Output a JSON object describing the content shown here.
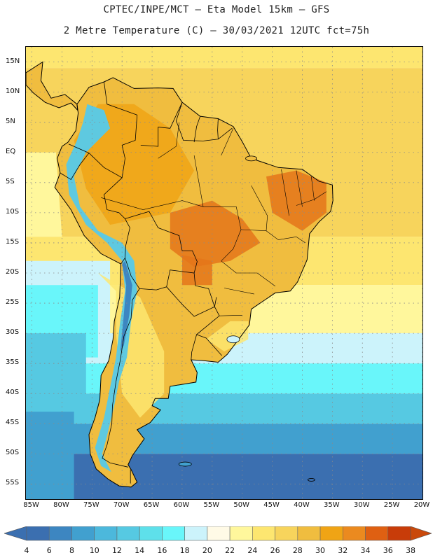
{
  "header": {
    "line1": "CPTEC/INPE/MCT –  Eta Model 15km – GFS",
    "line2": "2 Metre Temperature (C) – 30/03/2021 12UTC fct=75h"
  },
  "map": {
    "lat_labels": [
      "15N",
      "10N",
      "5N",
      "EQ",
      "5S",
      "10S",
      "15S",
      "20S",
      "25S",
      "30S",
      "35S",
      "40S",
      "45S",
      "50S",
      "55S"
    ],
    "lon_labels": [
      "85W",
      "80W",
      "75W",
      "70W",
      "65W",
      "60W",
      "55W",
      "50W",
      "45W",
      "40W",
      "35W",
      "30W",
      "25W",
      "20W"
    ],
    "lat_values": [
      15,
      10,
      5,
      0,
      -5,
      -10,
      -15,
      -20,
      -25,
      -30,
      -35,
      -40,
      -45,
      -50,
      -55
    ],
    "lon_values": [
      -85,
      -80,
      -75,
      -70,
      -65,
      -60,
      -55,
      -50,
      -45,
      -40,
      -35,
      -30,
      -25,
      -20
    ],
    "extent": {
      "lon_min": -86,
      "lon_max": -20,
      "lat_min": -57.5,
      "lat_max": 17.5
    },
    "grid_color": "#8a8a8a",
    "boundary_color": "#000000"
  },
  "colorbar": {
    "labels": [
      "4",
      "6",
      "8",
      "10",
      "12",
      "14",
      "16",
      "18",
      "20",
      "22",
      "24",
      "26",
      "28",
      "30",
      "32",
      "34",
      "36",
      "38"
    ],
    "colors": [
      "#3b6fb0",
      "#3d86c1",
      "#41a0cf",
      "#4cb8dc",
      "#56c9e2",
      "#5ee0ea",
      "#69f6fa",
      "#ccf3fb",
      "#fffae6",
      "#fff79c",
      "#fde670",
      "#f7d45c",
      "#f0bd3f",
      "#f0a415",
      "#eb8a1f",
      "#df6012",
      "#c83c09"
    ],
    "under_color": "#3b6fb0",
    "over_color": "#c9490b"
  },
  "fields": {
    "ocean_warm": "#f7d45c",
    "ocean_warm_south": "#fde670",
    "ocean_mild": "#fff79c",
    "ocean_cool": "#ccf3fb",
    "ocean_cold1": "#69f6fa",
    "ocean_cold2": "#56c9e2",
    "ocean_cold3": "#41a0cf",
    "ocean_cold4": "#3b6fb0",
    "land_hot": "#f0bd3f",
    "land_hotter": "#f0a415",
    "land_hottest": "#e4751a",
    "land_warm": "#fde670",
    "andes_cold": "#5ec9e0",
    "andes_colder": "#3d86c1"
  }
}
